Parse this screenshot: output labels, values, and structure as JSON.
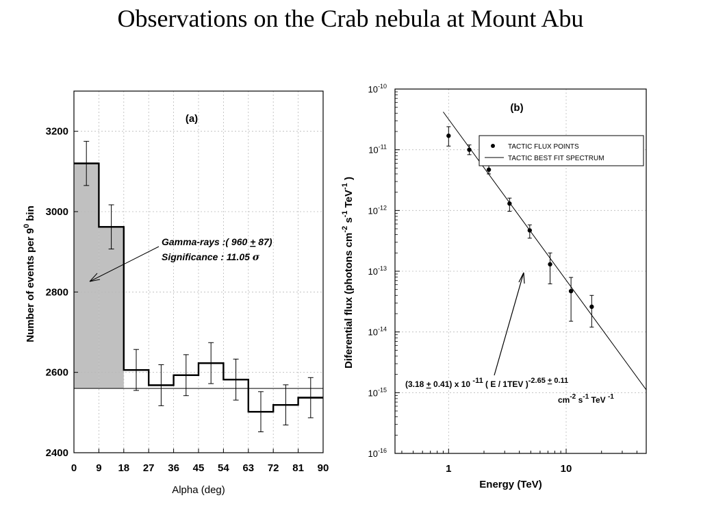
{
  "slide": {
    "title": "Observations on the Crab nebula at Mount Abu"
  },
  "colors": {
    "shade": "#c0c0c0",
    "grid": "#b8b8b8",
    "ink": "#000000"
  },
  "chart_data": [
    {
      "type": "histogram",
      "panel_label": "(a)",
      "xlabel": "Alpha (deg)",
      "ylabel_main": "Number of events per 9",
      "ylabel_sup": "0",
      "ylabel_tail": "  bin",
      "xlim": [
        0,
        90
      ],
      "ylim": [
        2400,
        3300
      ],
      "xticks": [
        0,
        9,
        18,
        27,
        36,
        45,
        54,
        63,
        72,
        81,
        90
      ],
      "yticks": [
        2400,
        2600,
        2800,
        3000,
        3200
      ],
      "bins": [
        {
          "x0": 0,
          "x1": 9,
          "y": 3120,
          "err": 55
        },
        {
          "x0": 9,
          "x1": 18,
          "y": 2962,
          "err": 55
        },
        {
          "x0": 18,
          "x1": 27,
          "y": 2606,
          "err": 51
        },
        {
          "x0": 27,
          "x1": 36,
          "y": 2568,
          "err": 51
        },
        {
          "x0": 36,
          "x1": 45,
          "y": 2593,
          "err": 51
        },
        {
          "x0": 45,
          "x1": 54,
          "y": 2623,
          "err": 51
        },
        {
          "x0": 54,
          "x1": 63,
          "y": 2582,
          "err": 51
        },
        {
          "x0": 63,
          "x1": 72,
          "y": 2502,
          "err": 50
        },
        {
          "x0": 72,
          "x1": 81,
          "y": 2519,
          "err": 50
        },
        {
          "x0": 81,
          "x1": 90,
          "y": 2537,
          "err": 50
        }
      ],
      "background_level": 2560,
      "shaded_range": [
        0,
        18
      ],
      "annotation": {
        "line1_prefix": "Gamma-rays  :( 960 ",
        "pm": "+",
        "line1_suffix": " 87)",
        "line2": "Significance :      11.05 ",
        "sigma": "σ"
      }
    },
    {
      "type": "scatter",
      "panel_label": "(b)",
      "xlabel": "Energy  (TeV)",
      "ylabel": "Diferential flux  (photons cm",
      "ylabel_sup1": "-2",
      "ylabel_mid": " s",
      "ylabel_sup2": "-1",
      "ylabel_mid2": " TeV",
      "ylabel_sup3": "-1",
      "ylabel_end": " )",
      "x_scale": "log",
      "y_scale": "log",
      "xlim": [
        0.35,
        48
      ],
      "ylim": [
        1e-16,
        1e-10
      ],
      "xticks": [
        1,
        10
      ],
      "xtick_labels": [
        "1",
        "10"
      ],
      "yticks_exp": [
        -10,
        -11,
        -12,
        -13,
        -14,
        -15,
        -16
      ],
      "ytick_base": "10",
      "legend": {
        "position": "top-right",
        "points": "TACTIC  FLUX POINTS",
        "line": "TACTIC  BEST FIT SPECTRUM"
      },
      "points": [
        {
          "x": 1.0,
          "y": 1.7e-11,
          "ylo": 1.15e-11,
          "yhi": 2.4e-11
        },
        {
          "x": 1.5,
          "y": 1e-11,
          "ylo": 8.3e-12,
          "yhi": 1.2e-11
        },
        {
          "x": 2.2,
          "y": 4.7e-12,
          "ylo": 4e-12,
          "yhi": 5.5e-12
        },
        {
          "x": 3.3,
          "y": 1.3e-12,
          "ylo": 9.7e-13,
          "yhi": 1.6e-12
        },
        {
          "x": 4.9,
          "y": 4.7e-13,
          "ylo": 3.5e-13,
          "yhi": 5.8e-13
        },
        {
          "x": 7.3,
          "y": 1.3e-13,
          "ylo": 6.2e-14,
          "yhi": 2e-13
        },
        {
          "x": 11.0,
          "y": 4.7e-14,
          "ylo": 1.5e-14,
          "yhi": 7.9e-14
        },
        {
          "x": 16.5,
          "y": 2.6e-14,
          "ylo": 1.2e-14,
          "yhi": 4e-14
        }
      ],
      "fit": {
        "norm": 3.18e-11,
        "norm_err": 4.1e-12,
        "index": -2.65,
        "index_err": 0.11,
        "x_range": [
          0.9,
          48
        ]
      },
      "formula": {
        "part1": "(3.18  ",
        "pm": "+",
        "part2": "  0.41) x 10 ",
        "exp1": "-11",
        "part3": "   ( E / 1TEV )",
        "exp2": "-2.65 ",
        "exp2_pm": "+",
        "exp2_tail": " 0.11",
        "units_a": "cm",
        "units_a_sup": "-2",
        "units_b": "  s",
        "units_b_sup": "-1",
        "units_c": "  TeV ",
        "units_c_sup": "-1"
      }
    }
  ]
}
